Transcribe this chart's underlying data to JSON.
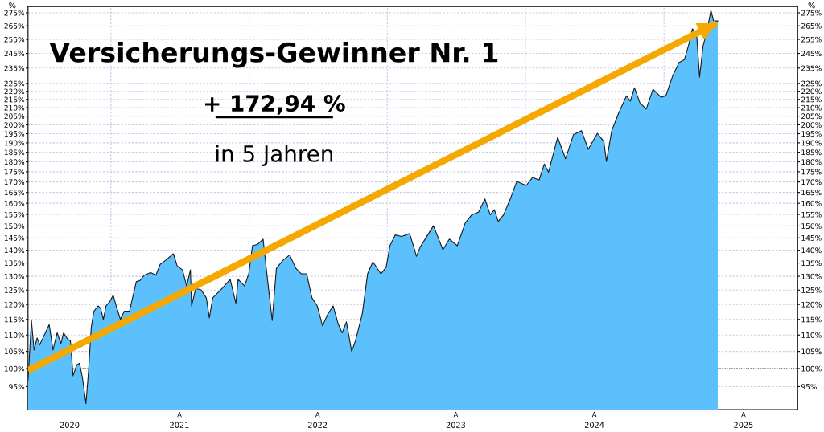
{
  "chart_data": {
    "type": "area",
    "title": "Versicherungs-Gewinner Nr. 1",
    "subtitle": "+ 172,94 %",
    "annotations": [
      "in 5 Jahren",
      "A",
      "A",
      "A",
      "A",
      "A"
    ],
    "ylabel": "%",
    "y2label": "%",
    "log": "y",
    "grid": true,
    "xlim": [
      "2020-05-27",
      "2025-12-20"
    ],
    "ylim": [
      89,
      280
    ],
    "xticks": [
      {
        "value": "2020-09-14",
        "label": "2020"
      },
      {
        "value": "2021-01-01",
        "label": null
      },
      {
        "value": "2021-07-01",
        "label": "2021"
      },
      {
        "value": "2022-01-01",
        "label": null
      },
      {
        "value": "2022-07-01",
        "label": "2022"
      },
      {
        "value": "2023-01-01",
        "label": null
      },
      {
        "value": "2023-07-01",
        "label": "2023"
      },
      {
        "value": "2024-01-01",
        "label": null
      },
      {
        "value": "2024-07-01",
        "label": "2024"
      },
      {
        "value": "2025-01-01",
        "label": null
      },
      {
        "value": "2025-07-30",
        "label": "2025"
      }
    ],
    "yticks": [
      {
        "value": 95,
        "label": "95%"
      },
      {
        "value": 100,
        "label": "100%"
      },
      {
        "value": 105,
        "label": "105%"
      },
      {
        "value": 110,
        "label": "110%"
      },
      {
        "value": 115,
        "label": "115%"
      },
      {
        "value": 120,
        "label": "120%"
      },
      {
        "value": 125,
        "label": "125%"
      },
      {
        "value": 130,
        "label": "130%"
      },
      {
        "value": 135,
        "label": "135%"
      },
      {
        "value": 140,
        "label": "140%"
      },
      {
        "value": 145,
        "label": "145%"
      },
      {
        "value": 150,
        "label": "150%"
      },
      {
        "value": 155,
        "label": "155%"
      },
      {
        "value": 160,
        "label": "160%"
      },
      {
        "value": 165,
        "label": "165%"
      },
      {
        "value": 170,
        "label": "170%"
      },
      {
        "value": 175,
        "label": "175%"
      },
      {
        "value": 180,
        "label": "180%"
      },
      {
        "value": 185,
        "label": "185%"
      },
      {
        "value": 190,
        "label": "190%"
      },
      {
        "value": 195,
        "label": "195%"
      },
      {
        "value": 200,
        "label": "200%"
      },
      {
        "value": 205,
        "label": "205%"
      },
      {
        "value": 210,
        "label": "210%"
      },
      {
        "value": 215,
        "label": "215%"
      },
      {
        "value": 220,
        "label": "220%"
      },
      {
        "value": 225,
        "label": "225%"
      },
      {
        "value": 235,
        "label": "235%"
      },
      {
        "value": 245,
        "label": "245%"
      },
      {
        "value": 255,
        "label": "255%"
      },
      {
        "value": 265,
        "label": "265%"
      },
      {
        "value": 275,
        "label": "275%"
      }
    ],
    "ref_lines": [
      {
        "axis": "y",
        "value": 100,
        "label": null,
        "color": "#000000",
        "line_style": "dotted"
      }
    ],
    "series": [
      {
        "type": "line",
        "color": "#f5a800",
        "x": [
          "2020-05-27",
          "2025-05-20"
        ],
        "values": [
          99.5,
          267
        ]
      },
      {
        "color": "#5bc0fb",
        "x": [
          "2020-05-27",
          "2020-06-05",
          "2020-06-12",
          "2020-06-20",
          "2020-06-27",
          "2020-07-04",
          "2020-07-22",
          "2020-08-01",
          "2020-08-12",
          "2020-08-22",
          "2020-08-29",
          "2020-09-09",
          "2020-09-16",
          "2020-09-23",
          "2020-10-03",
          "2020-10-10",
          "2020-10-18",
          "2020-10-27",
          "2020-11-03",
          "2020-11-10",
          "2020-11-17",
          "2020-11-28",
          "2020-12-05",
          "2020-12-12",
          "2020-12-19",
          "2020-12-29",
          "2021-01-07",
          "2021-01-15",
          "2021-01-26",
          "2021-02-05",
          "2021-02-19",
          "2021-03-09",
          "2021-03-19",
          "2021-03-30",
          "2021-04-16",
          "2021-04-30",
          "2021-05-11",
          "2021-05-25",
          "2021-06-15",
          "2021-06-25",
          "2021-07-09",
          "2021-07-20",
          "2021-07-30",
          "2021-08-02",
          "2021-08-13",
          "2021-08-27",
          "2021-09-10",
          "2021-09-18",
          "2021-09-27",
          "2021-10-22",
          "2021-11-12",
          "2021-11-27",
          "2021-12-03",
          "2021-12-20",
          "2021-12-31",
          "2022-01-10",
          "2022-01-24",
          "2022-02-07",
          "2022-02-17",
          "2022-03-03",
          "2022-03-14",
          "2022-03-31",
          "2022-04-18",
          "2022-05-05",
          "2022-05-19",
          "2022-06-02",
          "2022-06-16",
          "2022-06-30",
          "2022-07-14",
          "2022-07-28",
          "2022-08-11",
          "2022-08-25",
          "2022-09-04",
          "2022-09-15",
          "2022-09-29",
          "2022-10-09",
          "2022-10-27",
          "2022-11-10",
          "2022-11-24",
          "2022-12-15",
          "2022-12-29",
          "2023-01-08",
          "2023-01-22",
          "2023-02-08",
          "2023-03-01",
          "2023-03-12",
          "2023-03-19",
          "2023-03-29",
          "2023-05-03",
          "2023-05-28",
          "2023-06-14",
          "2023-07-05",
          "2023-07-26",
          "2023-08-12",
          "2023-08-30",
          "2023-09-16",
          "2023-09-30",
          "2023-10-11",
          "2023-10-21",
          "2023-11-04",
          "2023-11-22",
          "2023-12-09",
          "2024-01-03",
          "2024-01-20",
          "2024-02-06",
          "2024-02-20",
          "2024-03-02",
          "2024-03-26",
          "2024-04-16",
          "2024-05-07",
          "2024-05-28",
          "2024-06-15",
          "2024-07-09",
          "2024-07-26",
          "2024-08-02",
          "2024-08-16",
          "2024-09-03",
          "2024-09-24",
          "2024-10-04",
          "2024-10-15",
          "2024-10-29",
          "2024-11-15",
          "2024-12-03",
          "2024-12-17",
          "2024-12-24",
          "2025-01-06",
          "2025-01-24",
          "2025-02-10",
          "2025-02-24",
          "2025-03-07",
          "2025-03-17",
          "2025-03-28",
          "2025-04-05",
          "2025-04-14",
          "2025-04-25",
          "2025-05-05",
          "2025-05-12",
          "2025-05-23"
        ],
        "values": [
          96.6,
          114.6,
          105.4,
          109.1,
          107.0,
          108.7,
          113.3,
          105.4,
          110.7,
          107.4,
          110.7,
          108.7,
          108.2,
          98.0,
          101.1,
          101.5,
          97.3,
          90.5,
          99.5,
          112.4,
          117.7,
          119.5,
          118.6,
          115.0,
          119.5,
          120.9,
          123.2,
          119.5,
          115.0,
          117.7,
          117.7,
          128.0,
          128.5,
          130.4,
          131.4,
          130.4,
          134.5,
          136.0,
          138.6,
          133.9,
          132.4,
          126.5,
          132.4,
          119.5,
          125.6,
          125.1,
          122.3,
          115.5,
          122.3,
          125.6,
          128.9,
          120.4,
          128.9,
          126.5,
          130.9,
          141.8,
          142.4,
          144.5,
          130.9,
          114.6,
          132.9,
          136.0,
          138.1,
          132.9,
          130.9,
          130.9,
          122.3,
          119.5,
          112.9,
          116.8,
          119.5,
          113.3,
          110.7,
          114.2,
          105.0,
          108.2,
          116.8,
          130.9,
          135.5,
          130.9,
          133.4,
          141.8,
          146.2,
          145.6,
          146.8,
          141.3,
          137.6,
          141.3,
          150.1,
          140.2,
          144.5,
          141.8,
          151.3,
          154.8,
          156.0,
          162.0,
          154.8,
          157.1,
          151.9,
          154.8,
          162.0,
          170.2,
          168.3,
          172.2,
          170.9,
          178.9,
          174.8,
          193.0,
          181.6,
          194.5,
          196.7,
          186.5,
          195.2,
          190.8,
          180.2,
          196.7,
          206.7,
          217.2,
          213.9,
          222.2,
          213.1,
          209.1,
          221.3,
          218.0,
          216.3,
          217.2,
          229.9,
          238.8,
          240.7,
          250.9,
          262.7,
          259.7,
          229.0,
          250.0,
          261.7,
          277.0,
          268.7,
          268.7
        ]
      }
    ]
  }
}
